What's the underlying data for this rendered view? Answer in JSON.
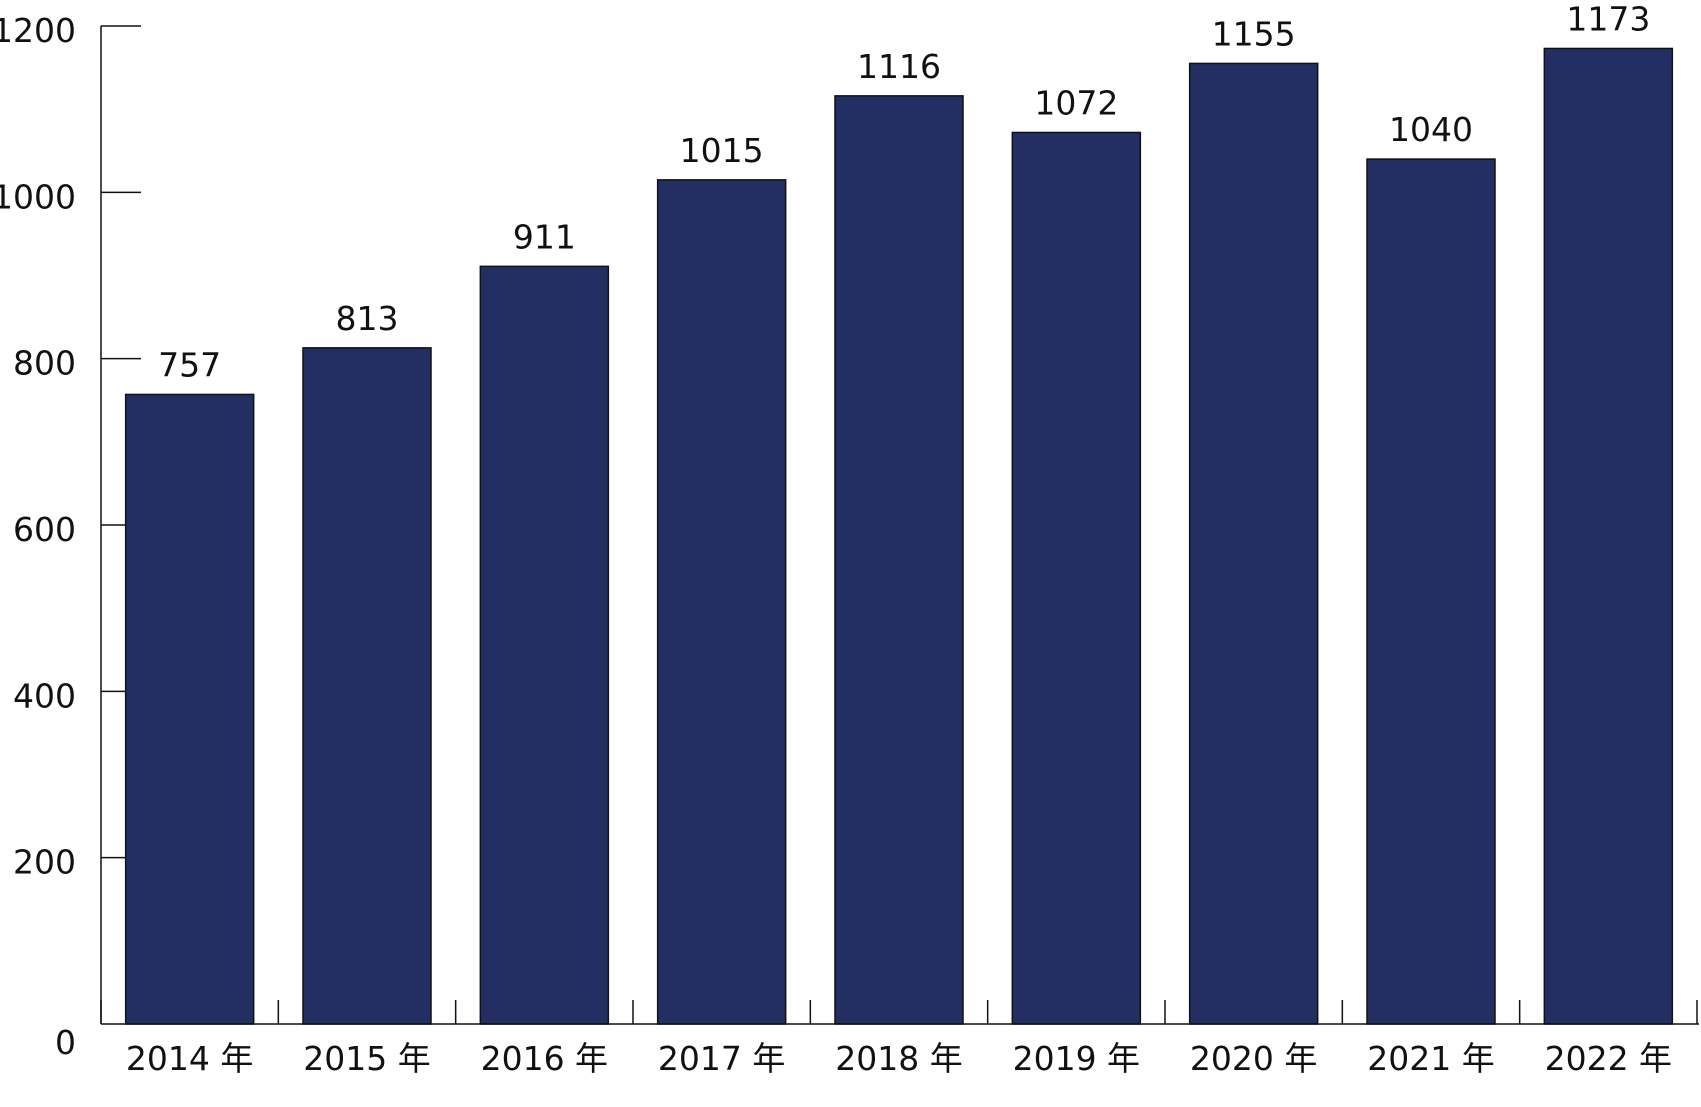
{
  "chart_data": {
    "type": "bar",
    "categories": [
      "2014 年",
      "2015 年",
      "2016 年",
      "2017 年",
      "2018 年",
      "2019 年",
      "2020 年",
      "2021 年",
      "2022 年"
    ],
    "values": [
      757,
      813,
      911,
      1015,
      1116,
      1072,
      1155,
      1040,
      1173
    ],
    "data_labels": [
      "757",
      "813",
      "911",
      "1015",
      "1116",
      "1072",
      "1155",
      "1040",
      "1173"
    ],
    "y_ticks": [
      0,
      200,
      400,
      600,
      800,
      1000,
      1200
    ],
    "y_tick_labels": [
      "0",
      "200",
      "400",
      "600",
      "800",
      "1000",
      "1200"
    ],
    "ylim": [
      0,
      1200
    ],
    "grid": false,
    "bar_color": "#232f62",
    "title": "",
    "xlabel": "",
    "ylabel": ""
  }
}
